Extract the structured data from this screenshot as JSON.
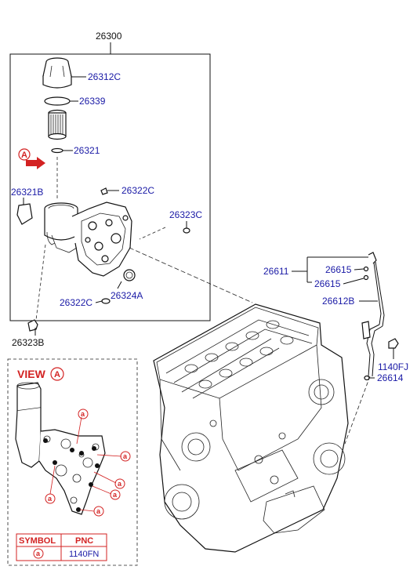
{
  "parts": {
    "p26300": "26300",
    "p26312C": "26312C",
    "p26339": "26339",
    "p26321": "26321",
    "p26321B": "26321B",
    "p26322C_top": "26322C",
    "p26323C": "26323C",
    "p26322C_bot": "26322C",
    "p26324A": "26324A",
    "p26323B": "26323B",
    "p26611": "26611",
    "p26615_a": "26615",
    "p26615_b": "26615",
    "p26612B": "26612B",
    "p1140FJ": "1140FJ",
    "p26614": "26614"
  },
  "marker": {
    "letter": "A"
  },
  "view": {
    "title": "VIEW",
    "letter": "A",
    "callout": "a"
  },
  "table": {
    "headers": [
      "SYMBOL",
      "PNC"
    ],
    "rows": [
      [
        "a",
        "1140FN"
      ]
    ]
  },
  "colors": {
    "label": "#1a1aa6",
    "accent": "#d32222",
    "line": "#111111"
  }
}
